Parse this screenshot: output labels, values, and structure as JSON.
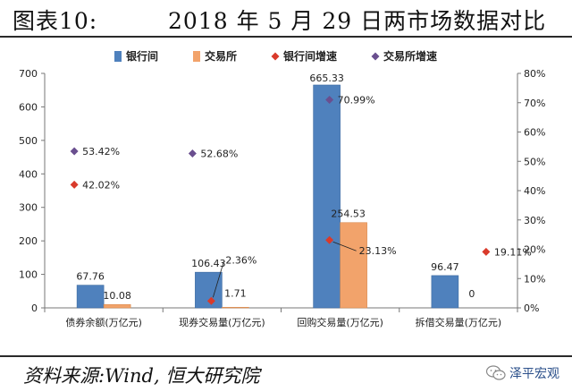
{
  "page": {
    "title_label": "图表10:",
    "title": "2018 年 5 月 29 日两市场数据对比",
    "source": "资料来源:Wind, 恒大研究院",
    "watermark": "泽平宏观",
    "watermark_icon": "wechat-icon"
  },
  "chart_data": {
    "type": "bar",
    "categories": [
      "债券余额(万亿元)",
      "现券交易量(万亿元)",
      "回购交易量(万亿元)",
      "拆借交易量(万亿元)"
    ],
    "series": [
      {
        "name": "银行间",
        "kind": "bar",
        "axis": "left",
        "color": "#4f81bd",
        "values": [
          67.76,
          106.43,
          665.33,
          96.47
        ],
        "labels": [
          "67.76",
          "106.43",
          "665.33",
          "96.47"
        ]
      },
      {
        "name": "交易所",
        "kind": "bar",
        "axis": "left",
        "color": "#f2a36b",
        "values": [
          10.08,
          1.71,
          254.53,
          0
        ],
        "labels": [
          "10.08",
          "1.71",
          "254.53",
          "0"
        ]
      },
      {
        "name": "银行间增速",
        "kind": "marker",
        "marker": "diamond",
        "axis": "right",
        "color": "#d93a2b",
        "values": [
          42.02,
          2.36,
          23.13,
          19.11
        ],
        "labels": [
          "42.02%",
          "2.36%",
          "23.13%",
          "19.11%"
        ]
      },
      {
        "name": "交易所增速",
        "kind": "marker",
        "marker": "diamond",
        "axis": "right",
        "color": "#6a4f8f",
        "values": [
          53.42,
          52.68,
          70.99,
          null
        ],
        "labels": [
          "53.42%",
          "52.68%",
          "70.99%",
          ""
        ]
      }
    ],
    "y_left": {
      "min": 0,
      "max": 700,
      "step": 100
    },
    "y_right": {
      "min": 0,
      "max": 80,
      "step": 10,
      "unit": "%"
    },
    "grid": false,
    "legend_position": "top"
  }
}
